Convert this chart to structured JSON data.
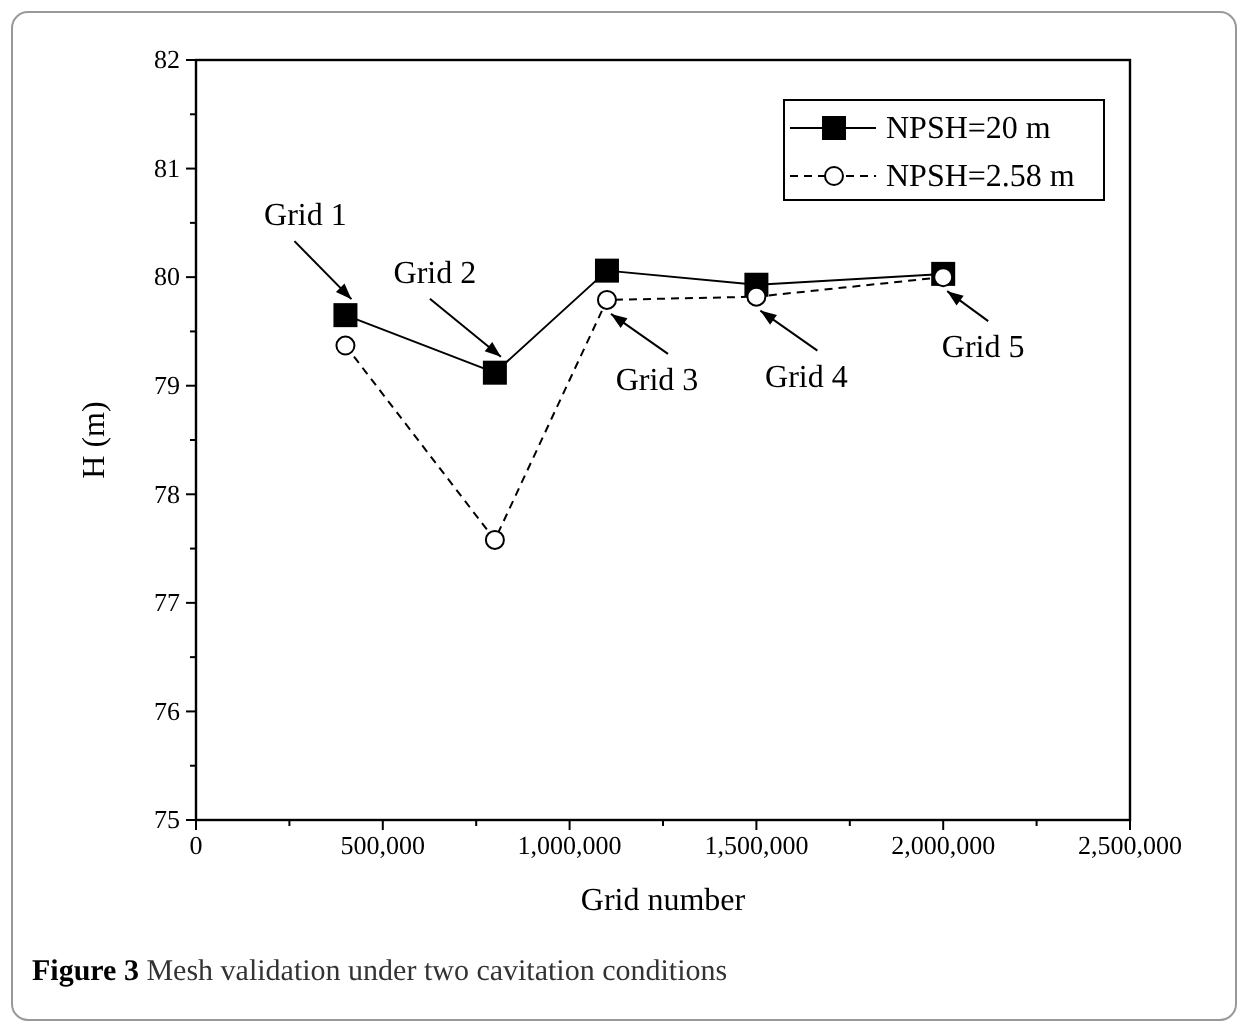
{
  "chart_data": {
    "type": "line",
    "xlabel": "Grid number",
    "ylabel": "H (m)",
    "x": [
      400000,
      800000,
      1100000,
      1500000,
      2000000
    ],
    "series": [
      {
        "name": "NPSH=20 m",
        "color": "#000000",
        "values": [
          79.65,
          79.12,
          80.06,
          79.93,
          80.03
        ],
        "marker": "square",
        "line_style": "solid"
      },
      {
        "name": "NPSH=2.58 m",
        "color": "#000000",
        "values": [
          79.37,
          77.58,
          79.79,
          79.82,
          80.0
        ],
        "marker": "circle",
        "line_style": "dashed"
      }
    ],
    "xlim": [
      0,
      2500000
    ],
    "xticks": [
      {
        "value": 0,
        "label": "0"
      },
      {
        "value": 500000,
        "label": "500,000"
      },
      {
        "value": 1000000,
        "label": "1,000,000"
      },
      {
        "value": 1500000,
        "label": "1,500,000"
      },
      {
        "value": 2000000,
        "label": "2,000,000"
      },
      {
        "value": 2500000,
        "label": "2,500,000"
      }
    ],
    "ylim": [
      75,
      82
    ],
    "yticks": [
      75,
      76,
      77,
      78,
      79,
      80,
      81,
      82
    ],
    "legend": "top right",
    "grid": false,
    "annotations": [
      {
        "text": "Grid 1",
        "x": 400000,
        "y": 79.65
      },
      {
        "text": "Grid 2",
        "x": 800000,
        "y": 79.12
      },
      {
        "text": "Grid 3",
        "x": 1100000,
        "y": 79.79
      },
      {
        "text": "Grid 4",
        "x": 1500000,
        "y": 79.82
      },
      {
        "text": "Grid 5",
        "x": 2000000,
        "y": 80.0
      },
      "Figure 3  Mesh validation under two cavitation conditions"
    ]
  }
}
